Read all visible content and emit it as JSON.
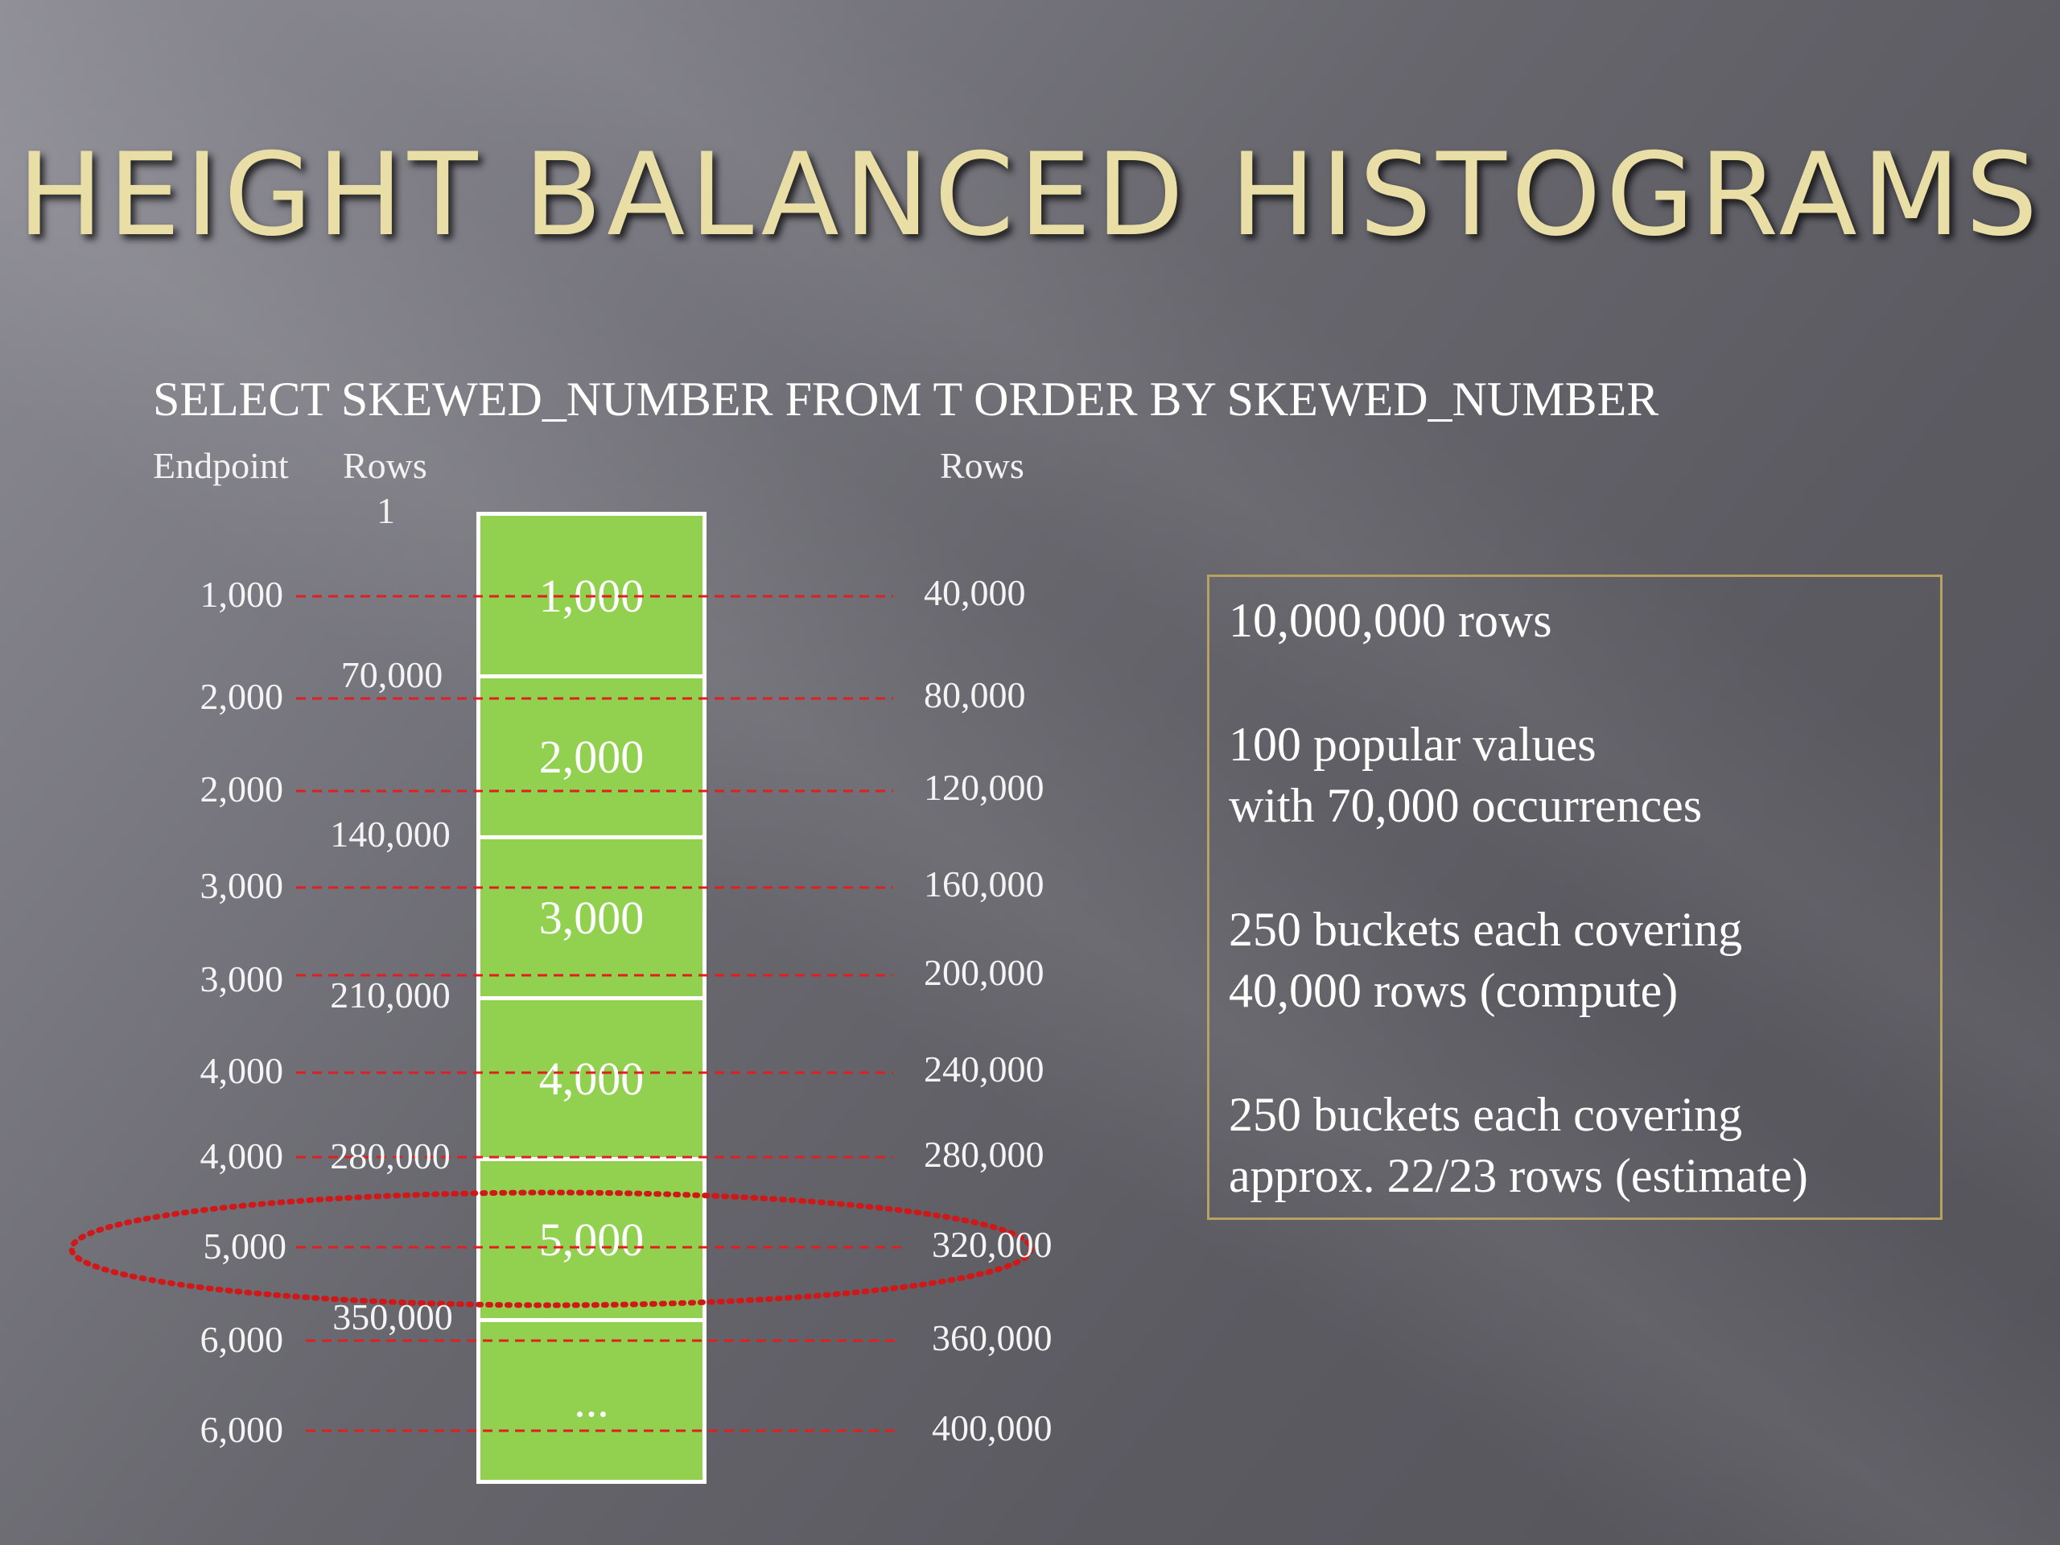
{
  "slide": {
    "title": "HEIGHT BALANCED HISTOGRAMS",
    "query": "SELECT SKEWED_NUMBER FROM T ORDER BY SKEWED_NUMBER"
  },
  "headers": {
    "endpoint": "Endpoint",
    "rows_left": "Rows",
    "rows_left_start": "1",
    "rows_right": "Rows"
  },
  "endpoints": [
    "1,000",
    "2,000",
    "2,000",
    "3,000",
    "3,000",
    "4,000",
    "4,000",
    "5,000",
    "6,000",
    "6,000"
  ],
  "cumulative_rows_right": [
    "40,000",
    "80,000",
    "120,000",
    "160,000",
    "200,000",
    "240,000",
    "280,000",
    "320,000",
    "360,000",
    "400,000"
  ],
  "value_boundaries_left": [
    "70,000",
    "140,000",
    "210,000",
    "280,000",
    "350,000"
  ],
  "bar_segments": [
    "1,000",
    "2,000",
    "3,000",
    "4,000",
    "5,000",
    "..."
  ],
  "info_box": {
    "line1": "10,000,000 rows",
    "line2a": "100 popular values",
    "line2b": "with 70,000 occurrences",
    "line3a": "250 buckets each covering",
    "line3b": "40,000 rows (compute)",
    "line4a": "250 buckets each covering",
    "line4b": "approx. 22/23 rows (estimate)"
  },
  "colors": {
    "title": "#e9dfa6",
    "bar_fill": "#92d050",
    "dashed_line": "#e02020",
    "highlight_ellipse": "#d01818",
    "info_border": "#b7a35f"
  }
}
